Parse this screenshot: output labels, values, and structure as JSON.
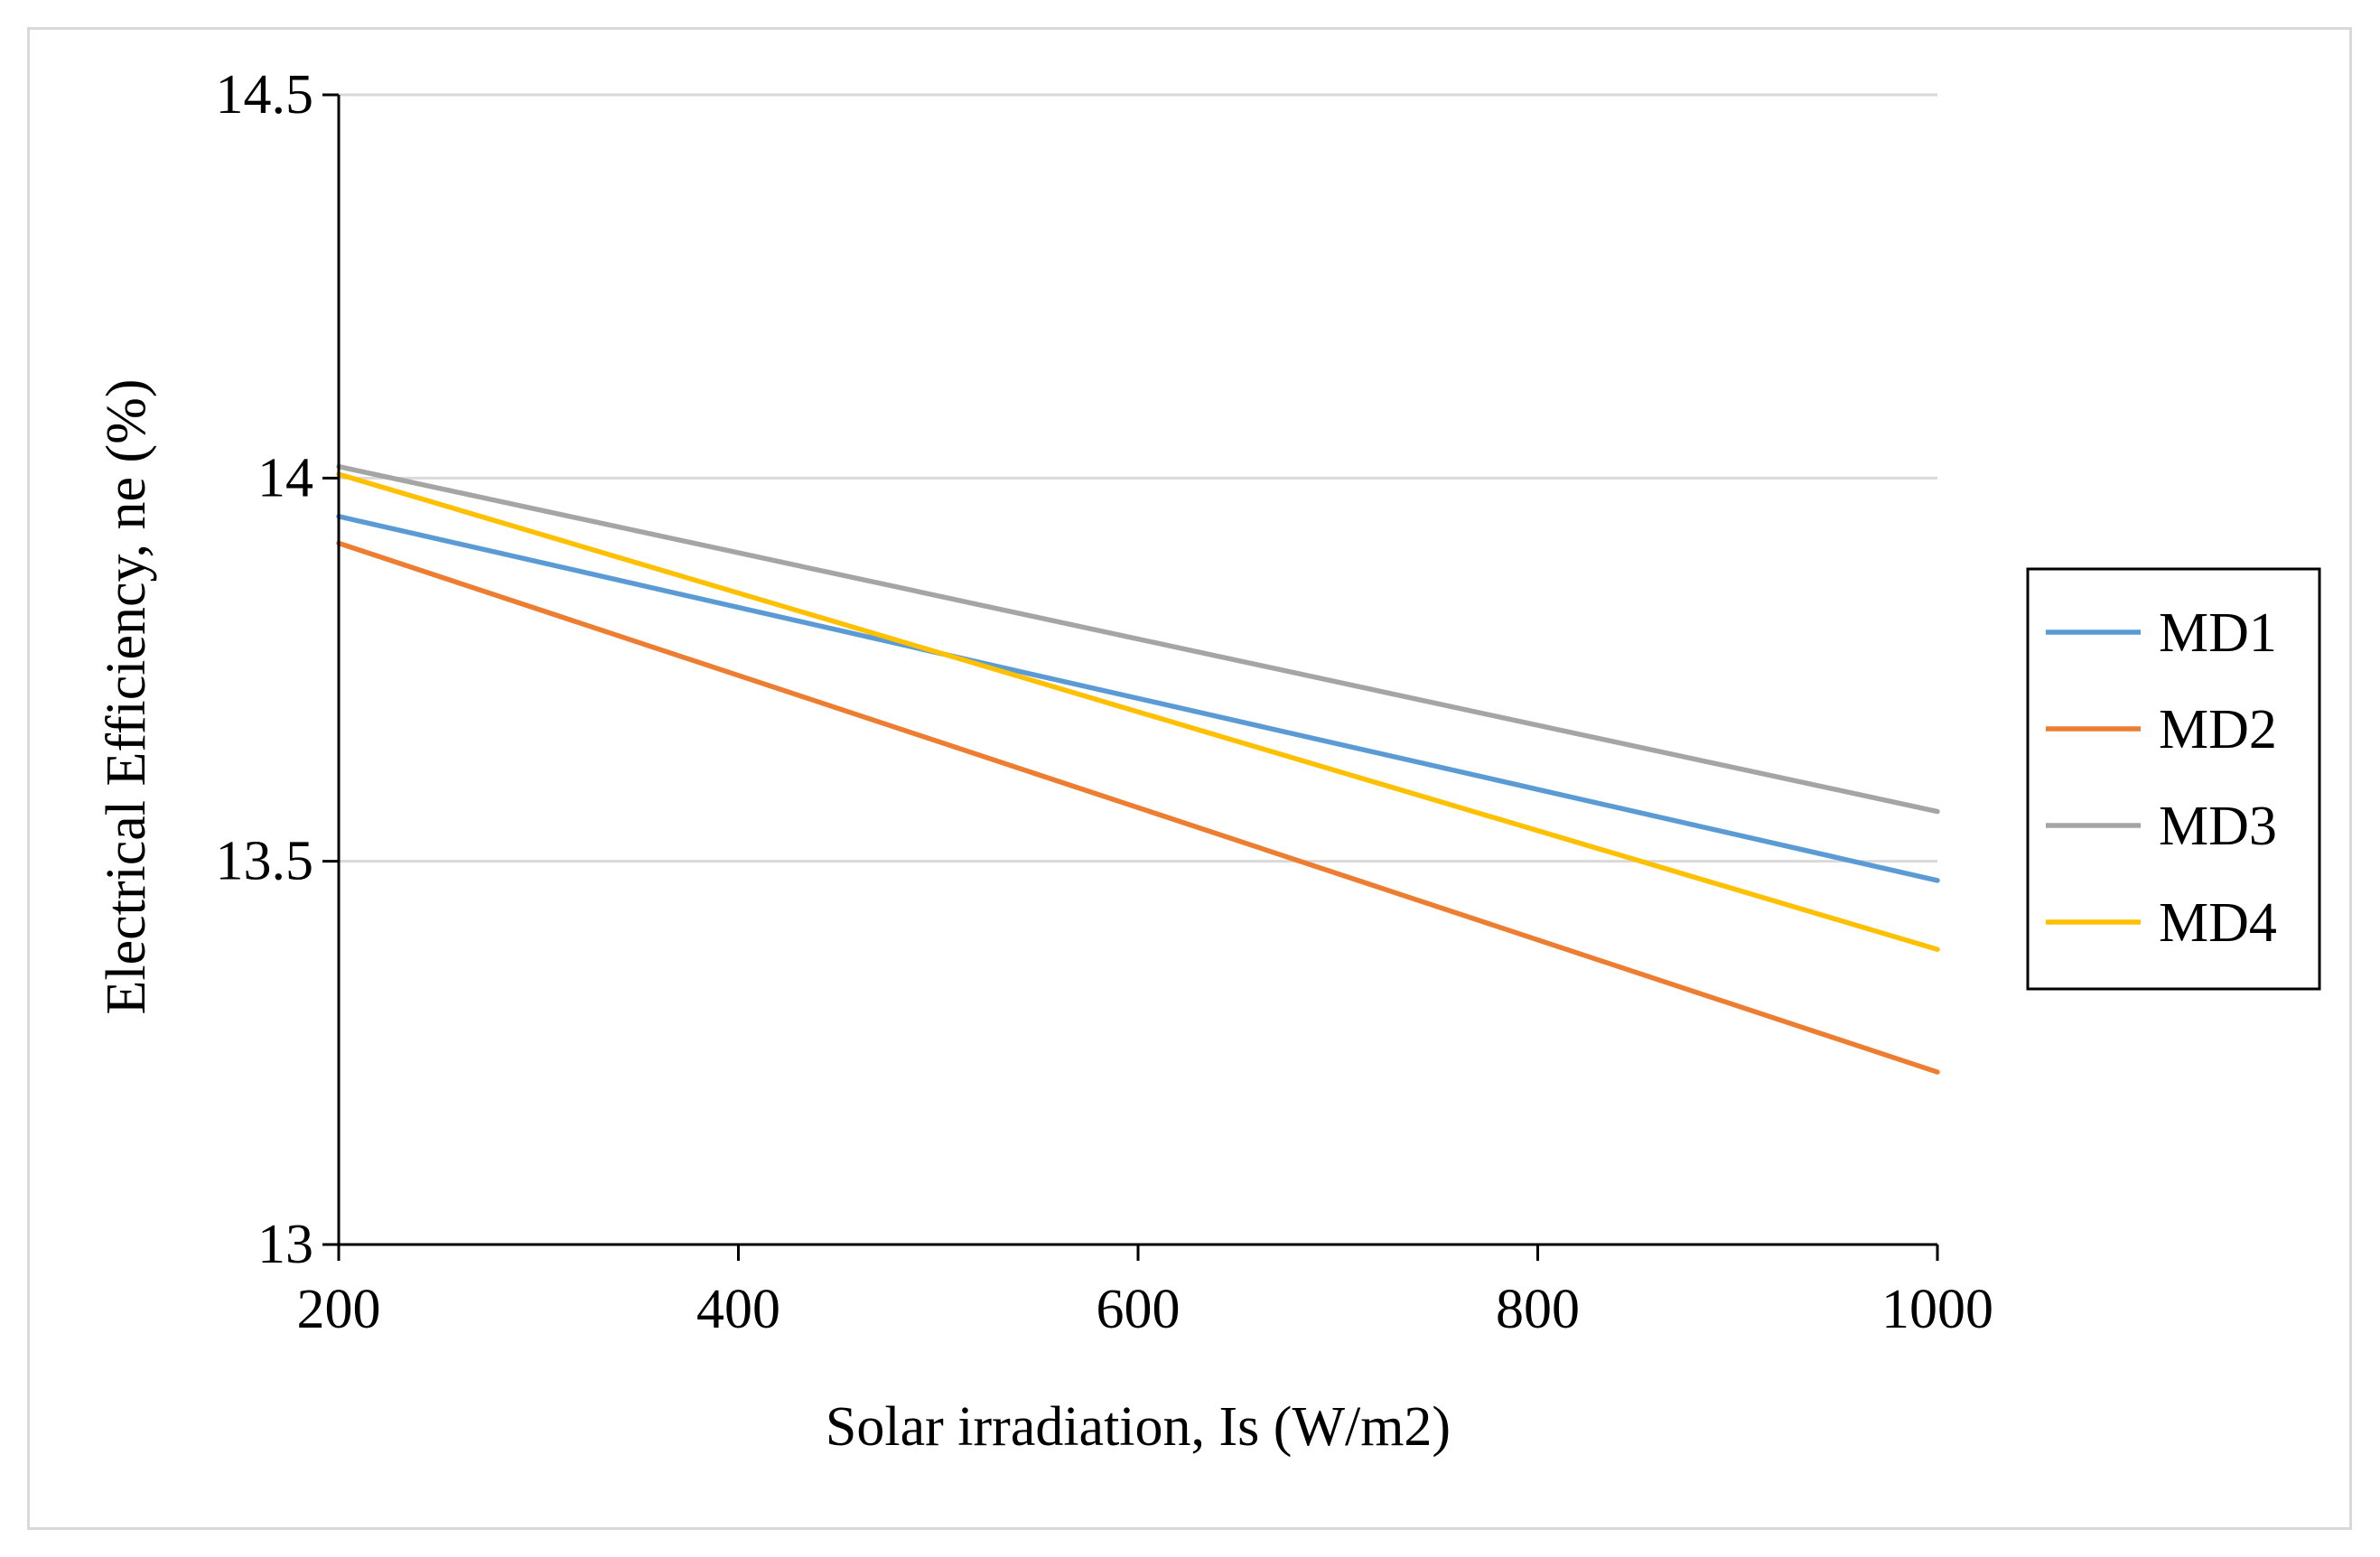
{
  "chart_data": {
    "type": "line",
    "title": "",
    "xlabel": "Solar irradiation, Is (W/m2)",
    "ylabel": "Electrical Efficiency, ne (%)",
    "x": [
      200,
      1000
    ],
    "xlim": [
      200,
      1000
    ],
    "ylim": [
      13,
      14.5
    ],
    "xticks": [
      200,
      400,
      600,
      800,
      1000
    ],
    "xtick_labels": [
      "200",
      "400",
      "600",
      "800",
      "1000"
    ],
    "yticks": [
      13,
      13.5,
      14,
      14.5
    ],
    "ytick_labels": [
      "13",
      "13.5",
      "14",
      "14.5"
    ],
    "grid": "horizontal",
    "legend_position": "right",
    "series": [
      {
        "name": "MD1",
        "color": "#5b9bd5",
        "values": [
          13.95,
          13.475
        ]
      },
      {
        "name": "MD2",
        "color": "#ed7d31",
        "values": [
          13.915,
          13.225
        ]
      },
      {
        "name": "MD3",
        "color": "#a5a5a5",
        "values": [
          14.015,
          13.565
        ]
      },
      {
        "name": "MD4",
        "color": "#ffc000",
        "values": [
          14.005,
          13.385
        ]
      }
    ]
  }
}
